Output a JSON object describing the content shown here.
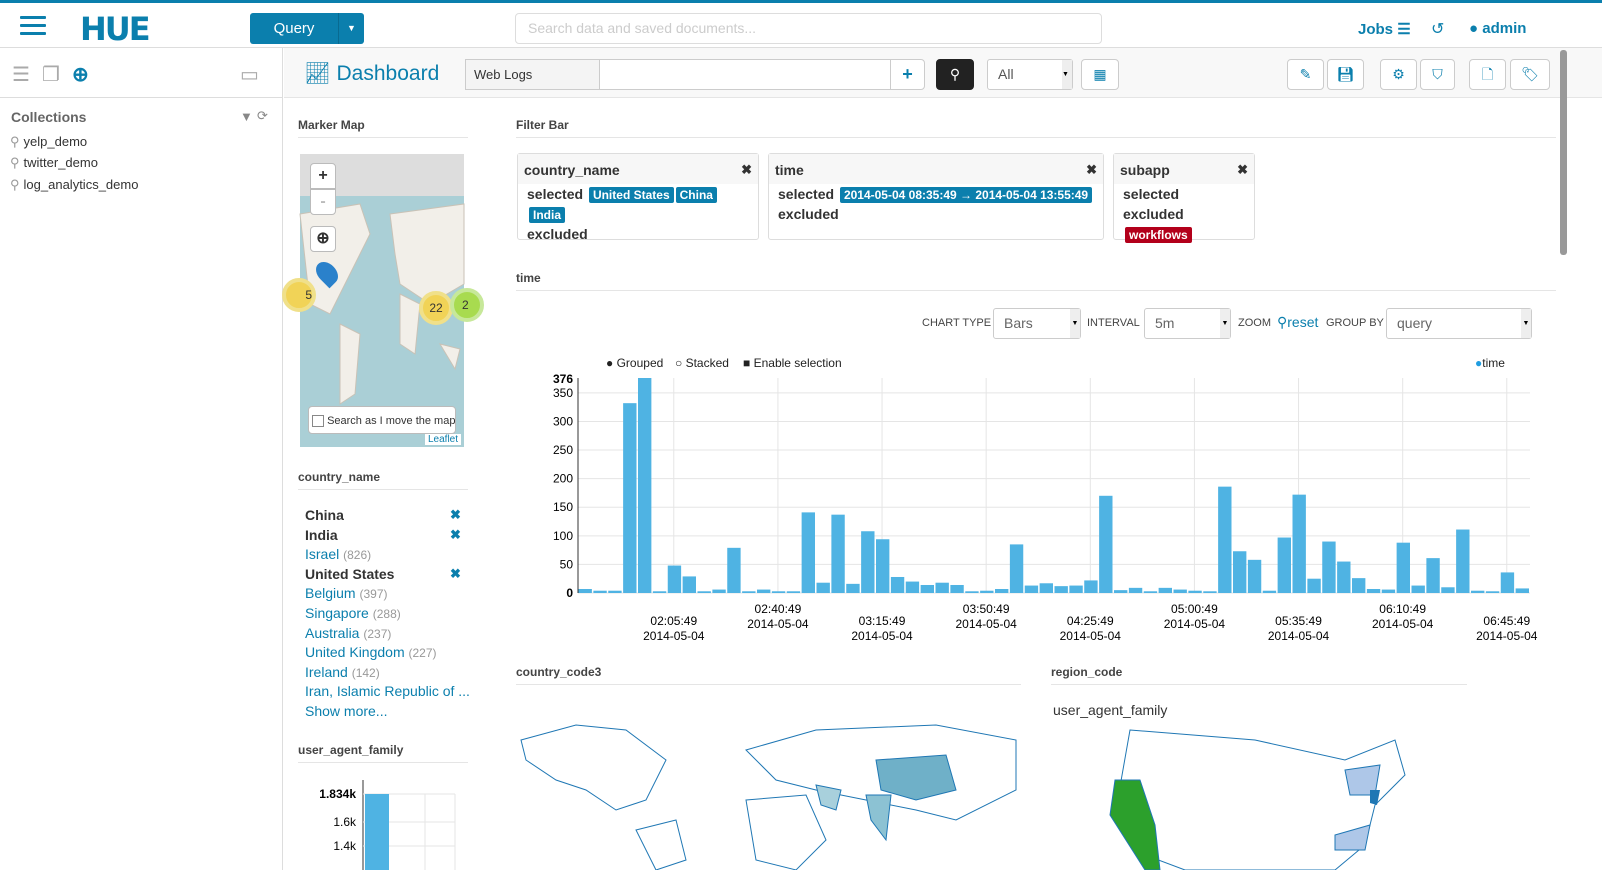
{
  "header": {
    "logo": "HUE",
    "query_button": "Query",
    "search_placeholder": "Search data and saved documents...",
    "jobs": "Jobs",
    "user": "admin"
  },
  "sidebar": {
    "collections_title": "Collections",
    "collections": [
      "yelp_demo",
      "twitter_demo",
      "log_analytics_demo"
    ]
  },
  "toolbar": {
    "title": "Dashboard",
    "collection": "Web Logs",
    "query_value": "",
    "filter_select": "All"
  },
  "marker_map": {
    "title": "Marker Map",
    "zoom_in": "+",
    "zoom_out": "-",
    "clusters": [
      "22",
      "5",
      "2"
    ],
    "search_checkbox": "Search as I move the map",
    "attribution": "Leaflet"
  },
  "facet_country": {
    "title": "country_name",
    "items": [
      {
        "label": "China",
        "count": "",
        "selected": true
      },
      {
        "label": "India",
        "count": "",
        "selected": true
      },
      {
        "label": "Israel",
        "count": "(826)",
        "selected": false
      },
      {
        "label": "United States",
        "count": "",
        "selected": true
      },
      {
        "label": "Belgium",
        "count": "(397)",
        "selected": false
      },
      {
        "label": "Singapore",
        "count": "(288)",
        "selected": false
      },
      {
        "label": "Australia",
        "count": "(237)",
        "selected": false
      },
      {
        "label": "United Kingdom",
        "count": "(227)",
        "selected": false
      },
      {
        "label": "Ireland",
        "count": "(142)",
        "selected": false
      },
      {
        "label": "Iran, Islamic Republic of ...",
        "count": "",
        "selected": false
      }
    ],
    "show_more": "Show more..."
  },
  "filter_bar": {
    "title": "Filter Bar",
    "cards": [
      {
        "name": "country_name",
        "selected_label": "selected",
        "selected": [
          "United States",
          "China",
          "India"
        ],
        "excluded_label": "excluded",
        "excluded": []
      },
      {
        "name": "time",
        "selected_label": "selected",
        "selected": [
          "2014-05-04  08:35:49 → 2014-05-04  13:55:49"
        ],
        "excluded_label": "excluded",
        "excluded": []
      },
      {
        "name": "subapp",
        "selected_label": "selected",
        "selected": [],
        "excluded_label": "excluded",
        "excluded": [
          "workflows"
        ]
      }
    ]
  },
  "time_widget": {
    "title": "time",
    "chart_type_label": "CHART TYPE",
    "chart_type": "Bars",
    "interval_label": "INTERVAL",
    "interval": "5m",
    "zoom_label": "ZOOM",
    "reset": "reset",
    "group_by_label": "GROUP BY",
    "group_by": "query",
    "modes": [
      "Grouped",
      "Stacked",
      "Enable selection"
    ]
  },
  "chart_data": [
    {
      "type": "bar",
      "title": "",
      "series": [
        {
          "name": "time",
          "values": [
            7,
            4,
            4,
            332,
            376,
            3,
            48,
            29,
            3,
            6,
            79,
            3,
            6,
            3,
            3,
            141,
            18,
            137,
            16,
            108,
            94,
            28,
            20,
            14,
            18,
            14,
            3,
            4,
            7,
            85,
            13,
            17,
            12,
            13,
            22,
            170,
            5,
            9,
            3,
            9,
            6,
            4,
            3,
            186,
            73,
            58,
            4,
            97,
            172,
            25,
            90,
            55,
            26,
            7,
            6,
            88,
            13,
            61,
            10,
            111,
            4,
            3,
            36,
            8
          ]
        }
      ],
      "x_tick_labels": [
        [
          "02:05:49",
          "2014-05-04"
        ],
        [
          "02:40:49",
          "2014-05-04"
        ],
        [
          "03:15:49",
          "2014-05-04"
        ],
        [
          "03:50:49",
          "2014-05-04"
        ],
        [
          "04:25:49",
          "2014-05-04"
        ],
        [
          "05:00:49",
          "2014-05-04"
        ],
        [
          "05:35:49",
          "2014-05-04"
        ],
        [
          "06:10:49",
          "2014-05-04"
        ],
        [
          "06:45:49",
          "2014-05-04"
        ]
      ],
      "y_ticks": [
        0,
        50,
        100,
        150,
        200,
        250,
        300,
        350
      ],
      "y_max_label": "376",
      "ylim": [
        0,
        376
      ],
      "grid": true,
      "legend": "top-right",
      "color": "#4fb3e3"
    },
    {
      "type": "bar",
      "title": "user_agent_family",
      "y_max_label": "1.834k",
      "y_tick_labels": [
        "1.6k",
        "1.4k"
      ],
      "grid": true,
      "color": "#4fb3e3"
    }
  ],
  "country_code3": {
    "title": "country_code3"
  },
  "region_code": {
    "title": "region_code",
    "subtitle": "user_agent_family"
  },
  "colors": {
    "accent": "#0B7FAD",
    "excluded": "#b3001b",
    "bar": "#4fb3e3",
    "map_highlight": "#2ca02c"
  }
}
